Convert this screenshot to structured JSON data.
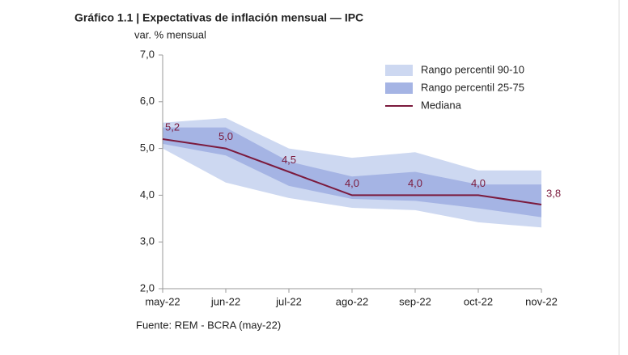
{
  "chart_data": {
    "type": "line",
    "title": "Gráfico 1.1 | Expectativas de inflación mensual — IPC",
    "y_label": "var. % mensual",
    "source": "Fuente: REM - BCRA (may-22)",
    "categories": [
      "may-22",
      "jun-22",
      "jul-22",
      "ago-22",
      "sep-22",
      "oct-22",
      "nov-22"
    ],
    "ylim": [
      2,
      7
    ],
    "yticks": [
      {
        "value": 2,
        "label": "2,0"
      },
      {
        "value": 3,
        "label": "3,0"
      },
      {
        "value": 4,
        "label": "4,0"
      },
      {
        "value": 5,
        "label": "5,0"
      },
      {
        "value": 6,
        "label": "6,0"
      },
      {
        "value": 7,
        "label": "7,0"
      }
    ],
    "bands": [
      {
        "name": "Rango percentil 90-10",
        "color": "#cdd8f1",
        "upper": [
          5.55,
          5.65,
          5.0,
          4.8,
          4.92,
          4.53,
          4.53
        ],
        "lower": [
          5.0,
          4.27,
          3.94,
          3.73,
          3.68,
          3.42,
          3.31
        ]
      },
      {
        "name": "Rango percentil 25-75",
        "color": "#a5b4e4",
        "upper": [
          5.45,
          5.45,
          4.72,
          4.4,
          4.5,
          4.23,
          4.23
        ],
        "lower": [
          5.1,
          4.85,
          4.2,
          3.92,
          3.88,
          3.72,
          3.53
        ]
      }
    ],
    "series": [
      {
        "name": "Mediana",
        "color": "#7b1a3d",
        "values": [
          5.2,
          5.0,
          4.5,
          4.0,
          4.0,
          4.0,
          3.8
        ],
        "value_labels": [
          "5,2",
          "5,0",
          "4,5",
          "4,0",
          "4,0",
          "4,0",
          "3,8"
        ]
      }
    ]
  }
}
